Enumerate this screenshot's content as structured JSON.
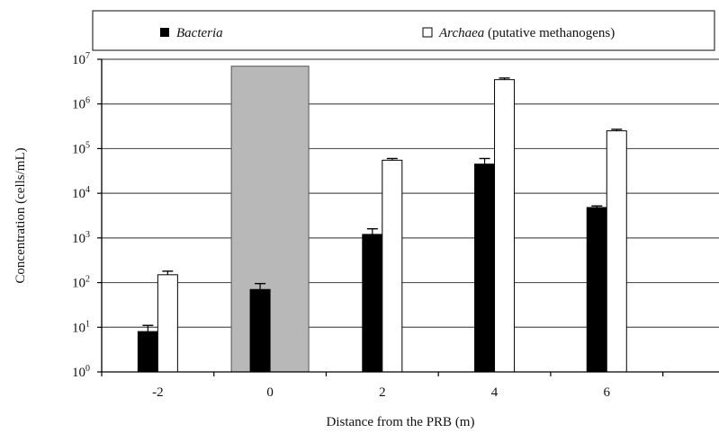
{
  "chart_data": {
    "type": "bar",
    "xlabel": "Distance from the PRB (m)",
    "ylabel": "Concentration (cells/mL)",
    "y_scale": "log",
    "ylim": [
      1,
      10000000
    ],
    "yticks": [
      {
        "value": 1,
        "base": "10",
        "exp": "0"
      },
      {
        "value": 10,
        "base": "10",
        "exp": "1"
      },
      {
        "value": 100,
        "base": "10",
        "exp": "2"
      },
      {
        "value": 1000,
        "base": "10",
        "exp": "3"
      },
      {
        "value": 10000,
        "base": "10",
        "exp": "4"
      },
      {
        "value": 100000,
        "base": "10",
        "exp": "5"
      },
      {
        "value": 1000000,
        "base": "10",
        "exp": "6"
      },
      {
        "value": 10000000,
        "base": "10",
        "exp": "7"
      }
    ],
    "categories": [
      "-2",
      "0",
      "2",
      "4",
      "6"
    ],
    "grid": true,
    "legend_position": "top",
    "series": [
      {
        "name": "Bacteria",
        "name_italic": true,
        "name_suffix": "",
        "color": "#000000",
        "values": [
          8,
          70,
          1200,
          45000,
          4800
        ],
        "error_upper": [
          11,
          95,
          1600,
          60000,
          5200
        ]
      },
      {
        "name": "Archaea",
        "name_italic": true,
        "name_suffix": " (putative methanogens)",
        "color": "#ffffff",
        "values": [
          150,
          null,
          55000,
          3500000,
          250000
        ],
        "error_upper": [
          180,
          null,
          60000,
          3800000,
          270000
        ]
      }
    ],
    "highlight": {
      "category": "0",
      "color": "#b8b8b8",
      "top_value": 7000000
    }
  }
}
